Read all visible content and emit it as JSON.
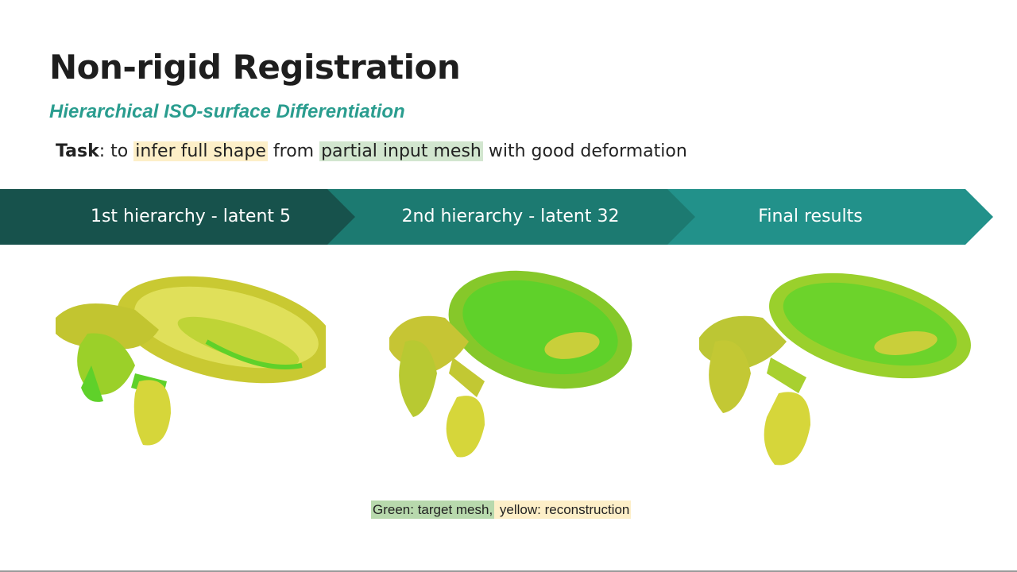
{
  "slide": {
    "title": "Non-rigid Registration",
    "subtitle": "Hierarchical ISO-surface Differentiation",
    "task": {
      "label": "Task",
      "colon": ": to ",
      "highlight1": "infer full shape",
      "middle": " from ",
      "highlight2": "partial input mesh",
      "end": " with good deformation"
    },
    "steps": [
      {
        "label": "1st hierarchy - latent 5"
      },
      {
        "label": "2nd hierarchy - latent 32"
      },
      {
        "label": "Final results"
      }
    ],
    "legend": {
      "green": "Green: target mesh,",
      "yellow": " yellow: reconstruction"
    }
  },
  "colors": {
    "accent": "#2a9d8f",
    "step1": "#17524c",
    "step2": "#1c7a71",
    "step3": "#22918a",
    "mesh_green": "#5fd12a",
    "mesh_yellow": "#d6d63a"
  }
}
